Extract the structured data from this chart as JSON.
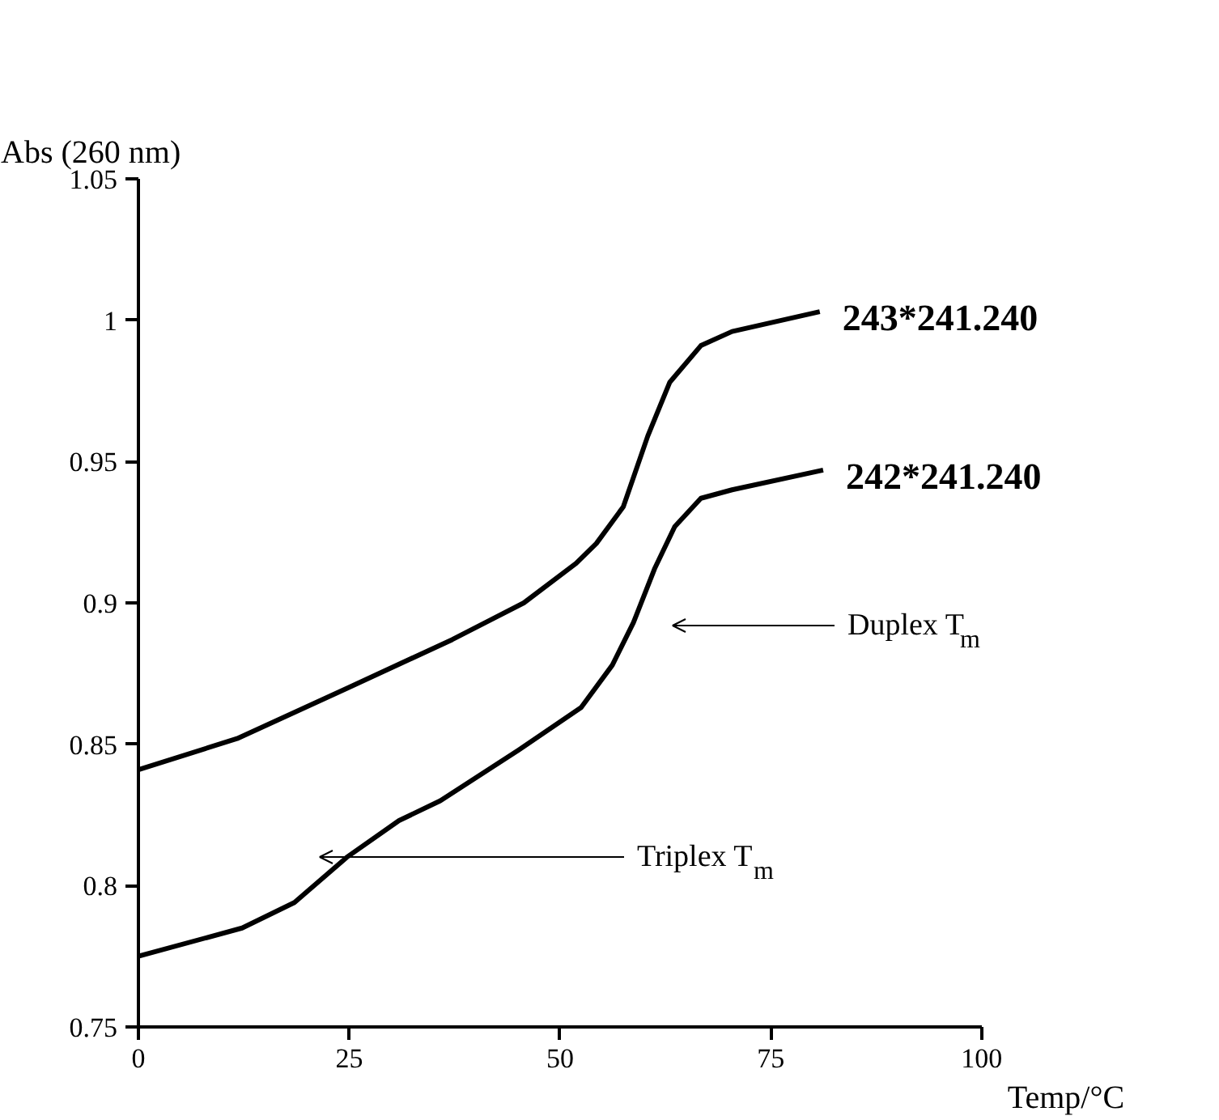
{
  "chart_data": {
    "type": "line",
    "xlabel": "Temp/°C",
    "ylabel": "Abs (260 nm)",
    "x": [
      0,
      11.7,
      24.9,
      37.2,
      45.7,
      51.9,
      54.3,
      57.5,
      60.4,
      63.0,
      66.7,
      70.4,
      80.8
    ],
    "series": [
      {
        "name": "243*241.240",
        "color": "#000000",
        "values": [
          0.841,
          0.852,
          0.87,
          0.887,
          0.9,
          0.914,
          0.921,
          0.934,
          0.959,
          0.978,
          0.991,
          0.996,
          1.003
        ]
      },
      {
        "name": "242*241.240",
        "color": "#000000",
        "x": [
          0,
          12.3,
          18.5,
          24.7,
          30.9,
          35.8,
          45.1,
          52.5,
          56.2,
          58.7,
          61.2,
          63.6,
          66.7,
          70.4,
          81.2
        ],
        "values": [
          0.775,
          0.785,
          0.794,
          0.81,
          0.823,
          0.83,
          0.848,
          0.863,
          0.878,
          0.893,
          0.912,
          0.927,
          0.937,
          0.94,
          0.947
        ]
      }
    ],
    "annotations": [
      "Duplex T$_{m}$",
      "Triplex T$_{m}$"
    ],
    "xlim": [
      0,
      100
    ],
    "xticks": [
      0,
      25,
      50,
      75,
      100
    ],
    "ylim": [
      0.75,
      1.05
    ],
    "yticks": [
      0.75,
      0.8,
      0.85,
      0.9,
      0.95,
      1,
      1.05
    ],
    "grid": false,
    "legend": false,
    "marker": "none",
    "line_style": "solid"
  }
}
